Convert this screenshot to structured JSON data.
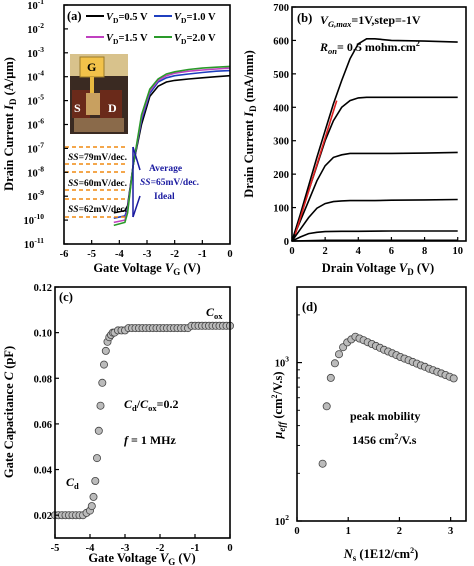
{
  "chart_data": [
    {
      "panel": "(a)",
      "type": "line",
      "xlabel": "Gate Voltage V_G (V)",
      "ylabel": "Drain Current I_D (A/μm)",
      "xlim": [
        -6,
        0
      ],
      "ylim": [
        1e-11,
        0.1
      ],
      "yscale": "log",
      "xticks": [
        "-6",
        "-5",
        "-4",
        "-3",
        "-2",
        "-1",
        "0"
      ],
      "yticks": [
        "10^-11",
        "10^-10",
        "10^-9",
        "10^-8",
        "10^-7",
        "10^-6",
        "10^-5",
        "10^-4",
        "10^-3",
        "10^-2",
        "10^-1"
      ],
      "legend_position": "top-right",
      "series": [
        {
          "name": "V_D=0.5 V",
          "color": "#000000",
          "x": [
            -4.2,
            -3.8,
            -3.7,
            -3.5,
            -3.2,
            -2.9,
            -2.6,
            -2.3,
            -2.0,
            -1.5,
            -1.0,
            -0.5,
            0
          ],
          "y": [
            2e-10,
            2.5e-10,
            4e-10,
            2e-08,
            1e-06,
            1.5e-05,
            4e-05,
            6e-05,
            7e-05,
            8e-05,
            9e-05,
            0.0001,
            0.00011
          ]
        },
        {
          "name": "V_D=1.0 V",
          "color": "#1f3fbf",
          "x": [
            -4.2,
            -3.8,
            -3.7,
            -3.5,
            -3.2,
            -2.9,
            -2.6,
            -2.3,
            -2.0,
            -1.5,
            -1.0,
            -0.5,
            0
          ],
          "y": [
            1.2e-10,
            1.5e-10,
            3e-10,
            2e-08,
            1.5e-06,
            2e-05,
            6e-05,
            9e-05,
            0.00011,
            0.00013,
            0.00015,
            0.00017,
            0.00018
          ]
        },
        {
          "name": "V_D=1.5 V",
          "color": "#c040c0",
          "x": [
            -4.2,
            -3.8,
            -3.7,
            -3.5,
            -3.2,
            -2.9,
            -2.6,
            -2.3,
            -2.0,
            -1.5,
            -1.0,
            -0.5,
            0
          ],
          "y": [
            8e-11,
            1e-10,
            2.5e-10,
            2e-08,
            2e-06,
            2.5e-05,
            7e-05,
            0.00011,
            0.00014,
            0.00017,
            0.00019,
            0.00021,
            0.00023
          ]
        },
        {
          "name": "V_D=2.0 V",
          "color": "#2a9a2a",
          "x": [
            -4.2,
            -3.8,
            -3.7,
            -3.5,
            -3.2,
            -2.9,
            -2.6,
            -2.3,
            -2.0,
            -1.5,
            -1.0,
            -0.5,
            0
          ],
          "y": [
            6e-11,
            8e-11,
            2e-10,
            2e-08,
            2.5e-06,
            3e-05,
            8e-05,
            0.00013,
            0.00016,
            0.0002,
            0.00023,
            0.00025,
            0.00027
          ]
        }
      ],
      "annotations": [
        "SS=79mV/dec.",
        "SS=60mV/dec.",
        "SS=62mV/dec.",
        "Average",
        "SS=65mV/dec.",
        "Ideal"
      ],
      "inset_labels": [
        "G",
        "S",
        "D"
      ]
    },
    {
      "panel": "(b)",
      "type": "line",
      "xlabel": "Drain Voltage V_D (V)",
      "ylabel": "Drain Current I_D (mA/mm)",
      "xlim": [
        0,
        10.5
      ],
      "ylim": [
        0,
        700
      ],
      "xticks": [
        "0",
        "2",
        "4",
        "6",
        "8",
        "10"
      ],
      "yticks": [
        "0",
        "100",
        "200",
        "300",
        "400",
        "500",
        "600",
        "700"
      ],
      "annotations": [
        "V_G,max=1V,step=-1V",
        "R_on= 0.5 mohm.cm²"
      ],
      "series": [
        {
          "name": "",
          "color": "#000000",
          "x": [
            0,
            0.5,
            1,
            1.5,
            2,
            2.5,
            3,
            3.5,
            4,
            4.5,
            5,
            6,
            8,
            10
          ],
          "y": [
            0,
            80,
            165,
            250,
            330,
            410,
            480,
            545,
            590,
            605,
            605,
            600,
            598,
            595
          ]
        },
        {
          "name": "",
          "color": "#000000",
          "x": [
            0,
            0.5,
            1,
            1.5,
            2,
            2.5,
            3,
            3.5,
            4,
            4.5,
            5,
            6,
            8,
            10
          ],
          "y": [
            0,
            75,
            150,
            225,
            300,
            360,
            400,
            420,
            428,
            430,
            430,
            430,
            430,
            430
          ]
        },
        {
          "name": "",
          "color": "#000000",
          "x": [
            0,
            0.5,
            1,
            1.5,
            2,
            2.5,
            3,
            3.5,
            4,
            5,
            6,
            8,
            10
          ],
          "y": [
            0,
            60,
            120,
            180,
            225,
            250,
            258,
            262,
            262,
            262,
            262,
            263,
            265
          ]
        },
        {
          "name": "",
          "color": "#000000",
          "x": [
            0,
            0.5,
            1,
            1.5,
            2,
            2.5,
            3,
            3.5,
            4,
            5,
            6,
            8,
            10
          ],
          "y": [
            0,
            35,
            70,
            98,
            112,
            118,
            120,
            121,
            121,
            121,
            122,
            123,
            124
          ]
        },
        {
          "name": "",
          "color": "#000000",
          "x": [
            0,
            0.5,
            1,
            1.5,
            2,
            3,
            4,
            6,
            8,
            10
          ],
          "y": [
            0,
            12,
            22,
            26,
            28,
            29,
            29,
            30,
            30,
            30
          ]
        },
        {
          "name": "",
          "color": "#000000",
          "x": [
            0,
            2,
            4,
            6,
            8,
            10
          ],
          "y": [
            0,
            2,
            2,
            2,
            2,
            2
          ]
        },
        {
          "name": "R_on fit",
          "color": "#e02020",
          "x": [
            0.2,
            2.7
          ],
          "y": [
            20,
            420
          ]
        }
      ]
    },
    {
      "panel": "(c)",
      "type": "scatter",
      "xlabel": "Gate Voltage V_G (V)",
      "ylabel": "Gate Capacitance C (pF)",
      "xlim": [
        -5,
        0
      ],
      "ylim": [
        0.01,
        0.12
      ],
      "xticks": [
        "-5",
        "-4",
        "-3",
        "-2",
        "-1",
        "0"
      ],
      "yticks": [
        "0.02",
        "0.04",
        "0.06",
        "0.08",
        "0.10",
        "0.12"
      ],
      "annotations": [
        "C_ox",
        "C_d",
        "C_d/C_ox=0.2",
        "f = 1 MHz"
      ],
      "series": [
        {
          "name": "",
          "color": "#bbbbbb",
          "x": [
            -5.0,
            -4.9,
            -4.8,
            -4.7,
            -4.6,
            -4.5,
            -4.4,
            -4.3,
            -4.2,
            -4.1,
            -4.0,
            -3.95,
            -3.9,
            -3.85,
            -3.8,
            -3.75,
            -3.7,
            -3.65,
            -3.6,
            -3.55,
            -3.5,
            -3.45,
            -3.4,
            -3.35,
            -3.3,
            -3.2,
            -3.1,
            -3.0,
            -2.9,
            -2.8,
            -2.7,
            -2.6,
            -2.5,
            -2.4,
            -2.3,
            -2.2,
            -2.1,
            -2.0,
            -1.9,
            -1.8,
            -1.7,
            -1.6,
            -1.5,
            -1.4,
            -1.3,
            -1.2,
            -1.1,
            -1.0,
            -0.9,
            -0.8,
            -0.7,
            -0.6,
            -0.5,
            -0.4,
            -0.3,
            -0.2,
            -0.1,
            0.0
          ],
          "y": [
            0.02,
            0.02,
            0.02,
            0.02,
            0.02,
            0.02,
            0.02,
            0.02,
            0.02,
            0.021,
            0.022,
            0.024,
            0.028,
            0.035,
            0.045,
            0.057,
            0.068,
            0.078,
            0.086,
            0.092,
            0.096,
            0.098,
            0.099,
            0.1,
            0.1,
            0.101,
            0.101,
            0.101,
            0.102,
            0.102,
            0.102,
            0.102,
            0.102,
            0.102,
            0.102,
            0.102,
            0.102,
            0.102,
            0.102,
            0.102,
            0.102,
            0.102,
            0.102,
            0.102,
            0.102,
            0.102,
            0.103,
            0.103,
            0.103,
            0.103,
            0.103,
            0.103,
            0.103,
            0.103,
            0.103,
            0.103,
            0.103,
            0.103
          ]
        }
      ]
    },
    {
      "panel": "(d)",
      "type": "scatter",
      "xlabel": "N_s (1E12/cm²)",
      "ylabel": "μ_eff (cm²/V.s)",
      "xlim": [
        0,
        3.3
      ],
      "ylim": [
        100,
        3000
      ],
      "yscale": "log",
      "xticks": [
        "0",
        "1",
        "2",
        "3"
      ],
      "yticks": [
        "10^2",
        "10^3"
      ],
      "annotations": [
        "peak mobility",
        "1456 cm²/V.s"
      ],
      "series": [
        {
          "name": "",
          "color": "#bbbbbb",
          "x": [
            0.5,
            0.58,
            0.66,
            0.74,
            0.82,
            0.9,
            0.98,
            1.06,
            1.14,
            1.22,
            1.3,
            1.38,
            1.46,
            1.54,
            1.62,
            1.7,
            1.78,
            1.86,
            1.94,
            2.02,
            2.1,
            2.18,
            2.26,
            2.34,
            2.42,
            2.5,
            2.58,
            2.66,
            2.74,
            2.82,
            2.9,
            2.98,
            3.06
          ],
          "y": [
            230,
            530,
            800,
            990,
            1130,
            1250,
            1340,
            1400,
            1456,
            1420,
            1385,
            1345,
            1310,
            1275,
            1240,
            1205,
            1175,
            1145,
            1115,
            1085,
            1060,
            1035,
            1010,
            985,
            960,
            940,
            915,
            895,
            875,
            855,
            835,
            815,
            795
          ]
        }
      ]
    }
  ],
  "labels": {
    "a": {
      "panel": "(a)",
      "xlabel_main": "Gate Voltage ",
      "xlabel_sym": "V",
      "xlabel_sub": "G",
      "xlabel_unit": " (V)",
      "ylabel_main": "Drain Current ",
      "ylabel_sym": "I",
      "ylabel_sub": "D",
      "ylabel_unit": " (A/μm)",
      "ytick_base": "10",
      "ytick_exps": [
        "-11",
        "-10",
        "-9",
        "-8",
        "-7",
        "-6",
        "-5",
        "-4",
        "-3",
        "-2",
        "-1"
      ],
      "xticks": [
        "-6",
        "-5",
        "-4",
        "-3",
        "-2",
        "-1",
        "0"
      ],
      "legend": [
        {
          "pre": "V",
          "sub": "D",
          "post": "=0.5 V"
        },
        {
          "pre": "V",
          "sub": "D",
          "post": "=1.0 V"
        },
        {
          "pre": "V",
          "sub": "D",
          "post": "=1.5 V"
        },
        {
          "pre": "V",
          "sub": "D",
          "post": "=2.0 V"
        }
      ],
      "ss1": "=79mV/dec.",
      "ss2": "=60mV/dec.",
      "ss3": "=62mV/dec.",
      "ss_pre": "SS",
      "avg1": "Average",
      "avg2_pre": "SS",
      "avg2": "=65mV/dec.",
      "avg3": "Ideal",
      "inset_g": "G",
      "inset_s": "S",
      "inset_d": "D"
    },
    "b": {
      "panel": "(b)",
      "xlabel_main": "Drain Voltage ",
      "xlabel_sym": "V",
      "xlabel_sub": "D",
      "xlabel_unit": " (V)",
      "ylabel_main": "Drain Current ",
      "ylabel_sym": "I",
      "ylabel_sub": "D",
      "ylabel_unit": " (mA/mm)",
      "xticks": [
        "0",
        "2",
        "4",
        "6",
        "8",
        "10"
      ],
      "yticks": [
        "0",
        "100",
        "200",
        "300",
        "400",
        "500",
        "600",
        "700"
      ],
      "ann1_pre": "V",
      "ann1_sub": "G,max",
      "ann1_post": "=1V,step=-1V",
      "ann2_pre": "R",
      "ann2_sub": "on",
      "ann2_post": "= 0.5 mohm.cm",
      "ann2_sup": "2"
    },
    "c": {
      "panel": "(c)",
      "xlabel_main": "Gate Voltage ",
      "xlabel_sym": "V",
      "xlabel_sub": "G",
      "xlabel_unit": " (V)",
      "ylabel_main": "Gate Capacitance ",
      "ylabel_sym": "C",
      "ylabel_unit": " (pF)",
      "xticks": [
        "-5",
        "-4",
        "-3",
        "-2",
        "-1",
        "0"
      ],
      "yticks": [
        "0.02",
        "0.04",
        "0.06",
        "0.08",
        "0.10",
        "0.12"
      ],
      "cox_sym": "C",
      "cox_sub": "ox",
      "cd_sym": "C",
      "cd_sub": "d",
      "ratio_a": "C",
      "ratio_a_sub": "d",
      "ratio_mid": "/",
      "ratio_b": "C",
      "ratio_b_sub": "ox",
      "ratio_val": "=0.2",
      "freq_sym": "f",
      "freq_val": " = 1 MHz"
    },
    "d": {
      "panel": "(d)",
      "xlabel_sym": "N",
      "xlabel_sub": "s",
      "xlabel_unit": " (1E12/cm",
      "xlabel_sup": "2",
      "xlabel_close": ")",
      "ylabel_sym": "μ",
      "ylabel_sub": "eff",
      "ylabel_unit": " (cm",
      "ylabel_sup": "2",
      "ylabel_close": "/V.s)",
      "xticks": [
        "0",
        "1",
        "2",
        "3"
      ],
      "ytick_base": "10",
      "ytick_exps": [
        "2",
        "3"
      ],
      "peak1": "peak mobility",
      "peak2_pre": "1456 cm",
      "peak2_sup": "2",
      "peak2_post": "/V.s"
    }
  }
}
